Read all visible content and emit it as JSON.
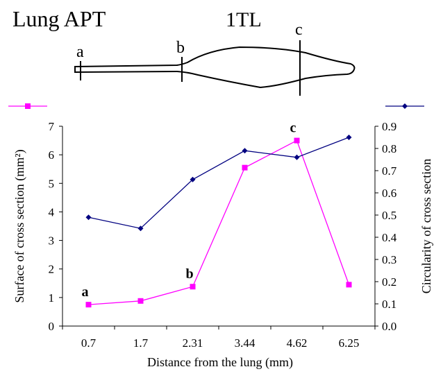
{
  "diagram": {
    "title": "Lung  APT",
    "label": "1TL",
    "markers": [
      "a",
      "b",
      "c"
    ]
  },
  "chart_data": {
    "type": "line",
    "x_label": "Distance from the lung (mm)",
    "y_label": "Surface of cross section (mm²)",
    "y2_label": "Circularity of cross section",
    "categories": [
      "0.7",
      "1.7",
      "2.31",
      "3.44",
      "4.62",
      "6.25"
    ],
    "series": [
      {
        "color": "#ff00ff",
        "marker": "square",
        "values": [
          0.75,
          0.88,
          1.38,
          5.55,
          6.5,
          1.45
        ]
      },
      {
        "color": "#000080",
        "marker": "diamond",
        "axis": "y2",
        "values": [
          0.49,
          0.44,
          0.66,
          0.79,
          0.76,
          0.85
        ]
      }
    ],
    "ylim": [
      0,
      7
    ],
    "yticks": [
      0,
      1,
      2,
      3,
      4,
      5,
      6,
      7
    ],
    "y2lim": [
      0,
      0.9
    ],
    "y2ticks": [
      {
        "value": 0,
        "label": "0.0"
      },
      0.1,
      0.2,
      0.3,
      0.4,
      0.5,
      0.6,
      0.7,
      0.8,
      0.9
    ],
    "annotations": [
      {
        "text": "a",
        "category": "0.7"
      },
      {
        "text": "b",
        "category": "2.31"
      },
      {
        "text": "c",
        "category": "4.62"
      }
    ]
  }
}
